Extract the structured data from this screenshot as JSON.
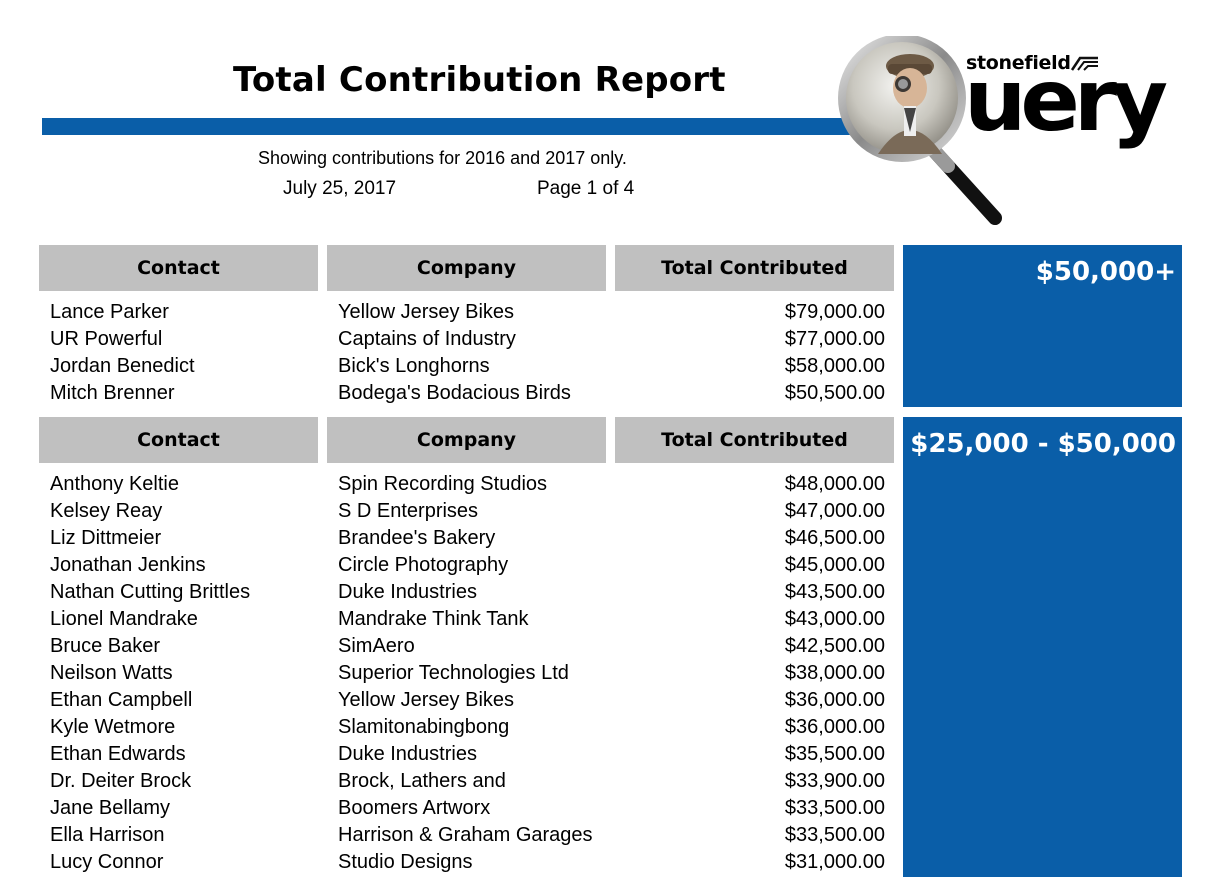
{
  "report": {
    "title": "Total Contribution Report",
    "subtitle": "Showing contributions for 2016 and 2017 only.",
    "date": "July 25, 2017",
    "page": "Page 1 of 4"
  },
  "logo": {
    "brand": "stonefield",
    "word": "uery",
    "icon": "magnifying-glass-detective"
  },
  "colors": {
    "accent_blue": "#0a5ea8",
    "header_gray": "#c0c0c0"
  },
  "columns": {
    "contact": "Contact",
    "company": "Company",
    "total": "Total Contributed"
  },
  "groups": [
    {
      "label": "$50,000+",
      "rows": [
        {
          "contact": "Lance Parker",
          "company": "Yellow Jersey Bikes",
          "total": "$79,000.00"
        },
        {
          "contact": "UR Powerful",
          "company": "Captains of Industry",
          "total": "$77,000.00"
        },
        {
          "contact": "Jordan Benedict",
          "company": "Bick's Longhorns",
          "total": "$58,000.00"
        },
        {
          "contact": "Mitch Brenner",
          "company": "Bodega's Bodacious Birds",
          "total": "$50,500.00"
        }
      ]
    },
    {
      "label": "$25,000 - $50,000",
      "rows": [
        {
          "contact": "Anthony Keltie",
          "company": "Spin Recording Studios",
          "total": "$48,000.00"
        },
        {
          "contact": "Kelsey Reay",
          "company": "S D Enterprises",
          "total": "$47,000.00"
        },
        {
          "contact": "Liz Dittmeier",
          "company": "Brandee's Bakery",
          "total": "$46,500.00"
        },
        {
          "contact": "Jonathan Jenkins",
          "company": "Circle Photography",
          "total": "$45,000.00"
        },
        {
          "contact": "Nathan Cutting Brittles",
          "company": "Duke Industries",
          "total": "$43,500.00"
        },
        {
          "contact": "Lionel Mandrake",
          "company": "Mandrake Think Tank",
          "total": "$43,000.00"
        },
        {
          "contact": "Bruce Baker",
          "company": "SimAero",
          "total": "$42,500.00"
        },
        {
          "contact": "Neilson Watts",
          "company": "Superior Technologies Ltd",
          "total": "$38,000.00"
        },
        {
          "contact": "Ethan Campbell",
          "company": "Yellow Jersey Bikes",
          "total": "$36,000.00"
        },
        {
          "contact": "Kyle Wetmore",
          "company": "Slamitonabingbong",
          "total": "$36,000.00"
        },
        {
          "contact": "Ethan Edwards",
          "company": "Duke Industries",
          "total": "$35,500.00"
        },
        {
          "contact": "Dr. Deiter Brock",
          "company": "Brock, Lathers and",
          "total": "$33,900.00"
        },
        {
          "contact": "Jane Bellamy",
          "company": "Boomers Artworx",
          "total": "$33,500.00"
        },
        {
          "contact": "Ella Harrison",
          "company": "Harrison & Graham Garages",
          "total": "$33,500.00"
        },
        {
          "contact": "Lucy Connor",
          "company": "Studio Designs",
          "total": "$31,000.00"
        }
      ]
    }
  ]
}
